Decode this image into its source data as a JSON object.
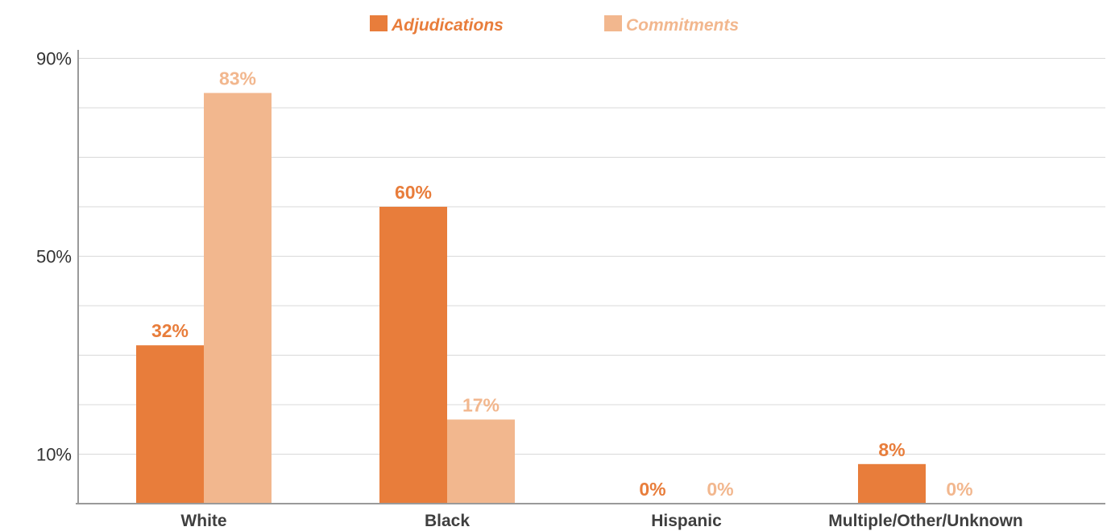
{
  "chart_data": {
    "type": "bar",
    "categories": [
      "White",
      "Black",
      "Hispanic",
      "Multiple/Other/Unknown"
    ],
    "series": [
      {
        "name": "Adjudications",
        "values": [
          32,
          60,
          0,
          8
        ],
        "labels": [
          "32%",
          "60%",
          "0%",
          "8%"
        ],
        "color": "#e87d3b"
      },
      {
        "name": "Commitments",
        "values": [
          83,
          17,
          0,
          0
        ],
        "labels": [
          "83%",
          "17%",
          "0%",
          "0%"
        ],
        "color": "#f2b78e"
      }
    ],
    "y_ticks": [
      {
        "value": 10,
        "label": "10%"
      },
      {
        "value": 50,
        "label": "50%"
      },
      {
        "value": 90,
        "label": "90%"
      }
    ],
    "ylim": [
      0,
      90
    ],
    "gridlines": [
      10,
      20,
      30,
      40,
      50,
      60,
      70,
      80,
      90
    ],
    "grid": true,
    "legend_position": "top-center",
    "title": "",
    "xlabel": "",
    "ylabel": ""
  }
}
